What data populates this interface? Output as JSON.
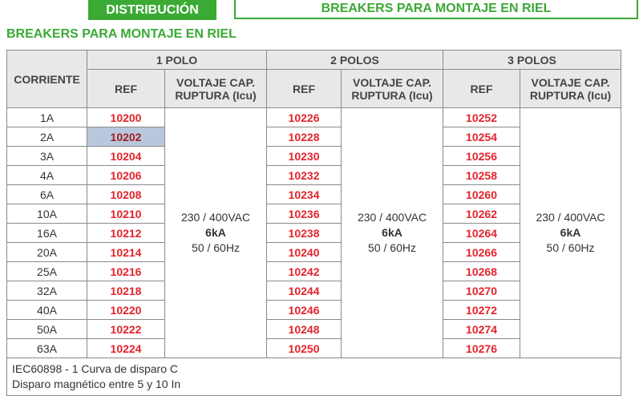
{
  "header": {
    "section": "DISTRIBUCIÓN",
    "tab": "BREAKERS PARA MONTAJE EN RIEL"
  },
  "title": "BREAKERS PARA MONTAJE EN RIEL",
  "table": {
    "corriente_header": "CORRIENTE",
    "currents": [
      "1A",
      "2A",
      "3A",
      "4A",
      "6A",
      "10A",
      "16A",
      "20A",
      "25A",
      "32A",
      "40A",
      "50A",
      "63A"
    ],
    "groups": [
      {
        "name": "1 POLO",
        "ref_header": "REF",
        "voltage_header": "VOLTAJE CAP. RUPTURA (Icu)",
        "refs": [
          "10200",
          "10202",
          "10204",
          "10206",
          "10208",
          "10210",
          "10212",
          "10214",
          "10216",
          "10218",
          "10220",
          "10222",
          "10224"
        ],
        "voltage": [
          "230 / 400VAC",
          "6kA",
          "50 / 60Hz"
        ]
      },
      {
        "name": "2 POLOS",
        "ref_header": "REF",
        "voltage_header": "VOLTAJE CAP. RUPTURA (Icu)",
        "refs": [
          "10226",
          "10228",
          "10230",
          "10232",
          "10234",
          "10236",
          "10238",
          "10240",
          "10242",
          "10244",
          "10246",
          "10248",
          "10250"
        ],
        "voltage": [
          "230 / 400VAC",
          "6kA",
          "50 / 60Hz"
        ]
      },
      {
        "name": "3 POLOS",
        "ref_header": "REF",
        "voltage_header": "VOLTAJE CAP. RUPTURA (Icu)",
        "refs": [
          "10252",
          "10254",
          "10256",
          "10258",
          "10260",
          "10262",
          "10264",
          "10266",
          "10268",
          "10270",
          "10272",
          "10274",
          "10276"
        ],
        "voltage": [
          "230 / 400VAC",
          "6kA",
          "50 / 60Hz"
        ]
      }
    ],
    "footer": [
      "IEC60898 - 1 Curva de disparo C",
      "Disparo magnético entre 5 y 10 In"
    ]
  }
}
